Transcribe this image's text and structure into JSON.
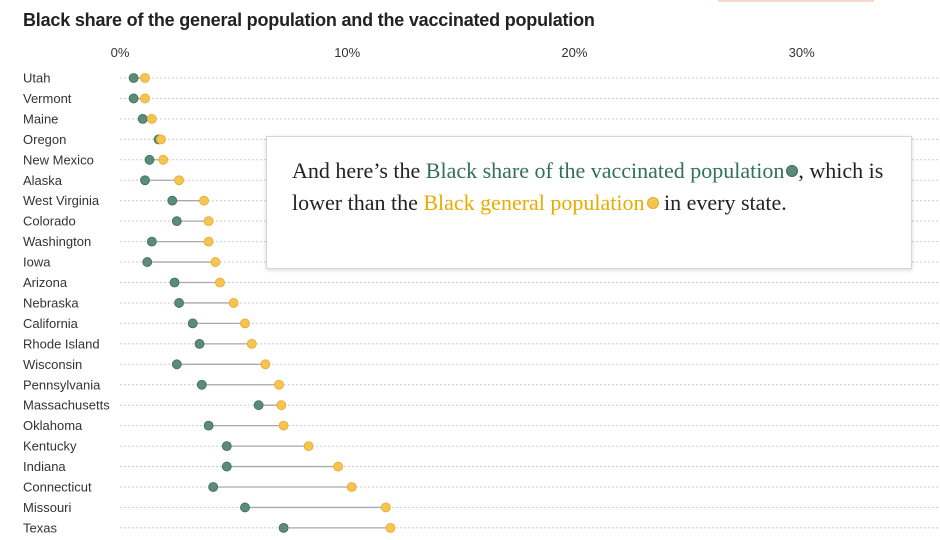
{
  "chart_data": {
    "type": "dumbbell",
    "title": "Black share of the general population and the vaccinated population",
    "x_ticks": [
      "0%",
      "10%",
      "20%",
      "30%"
    ],
    "x_tick_values": [
      0,
      10,
      20,
      30
    ],
    "xlim": [
      0,
      36
    ],
    "grid": true,
    "colors": {
      "vaccinated": "#5b8c79",
      "vaccinated_stroke": "#3f6b5c",
      "general": "#f5c451",
      "general_stroke": "#e8aa2a",
      "connector": "#a9a9a9",
      "grid": "#cccccc"
    },
    "states": [
      {
        "name": "Utah",
        "vaccinated": 0.6,
        "general": 1.1
      },
      {
        "name": "Vermont",
        "vaccinated": 0.6,
        "general": 1.1
      },
      {
        "name": "Maine",
        "vaccinated": 1.0,
        "general": 1.4
      },
      {
        "name": "Oregon",
        "vaccinated": 1.7,
        "general": 1.8
      },
      {
        "name": "New Mexico",
        "vaccinated": 1.3,
        "general": 1.9
      },
      {
        "name": "Alaska",
        "vaccinated": 1.1,
        "general": 2.6
      },
      {
        "name": "West Virginia",
        "vaccinated": 2.3,
        "general": 3.7
      },
      {
        "name": "Colorado",
        "vaccinated": 2.5,
        "general": 3.9
      },
      {
        "name": "Washington",
        "vaccinated": 1.4,
        "general": 3.9
      },
      {
        "name": "Iowa",
        "vaccinated": 1.2,
        "general": 4.2
      },
      {
        "name": "Arizona",
        "vaccinated": 2.4,
        "general": 4.4
      },
      {
        "name": "Nebraska",
        "vaccinated": 2.6,
        "general": 5.0
      },
      {
        "name": "California",
        "vaccinated": 3.2,
        "general": 5.5
      },
      {
        "name": "Rhode Island",
        "vaccinated": 3.5,
        "general": 5.8
      },
      {
        "name": "Wisconsin",
        "vaccinated": 2.5,
        "general": 6.4
      },
      {
        "name": "Pennsylvania",
        "vaccinated": 3.6,
        "general": 7.0
      },
      {
        "name": "Massachusetts",
        "vaccinated": 6.1,
        "general": 7.1
      },
      {
        "name": "Oklahoma",
        "vaccinated": 3.9,
        "general": 7.2
      },
      {
        "name": "Kentucky",
        "vaccinated": 4.7,
        "general": 8.3
      },
      {
        "name": "Indiana",
        "vaccinated": 4.7,
        "general": 9.6
      },
      {
        "name": "Connecticut",
        "vaccinated": 4.1,
        "general": 10.2
      },
      {
        "name": "Missouri",
        "vaccinated": 5.5,
        "general": 11.7
      },
      {
        "name": "Texas",
        "vaccinated": 7.2,
        "general": 11.9
      }
    ]
  },
  "annotation": {
    "part1": "And here’s the ",
    "vaccinated_label": "Black share of the vaccinated population",
    "part2": ", which is lower than the ",
    "general_label": "Black general population",
    "part3": " in every state."
  }
}
